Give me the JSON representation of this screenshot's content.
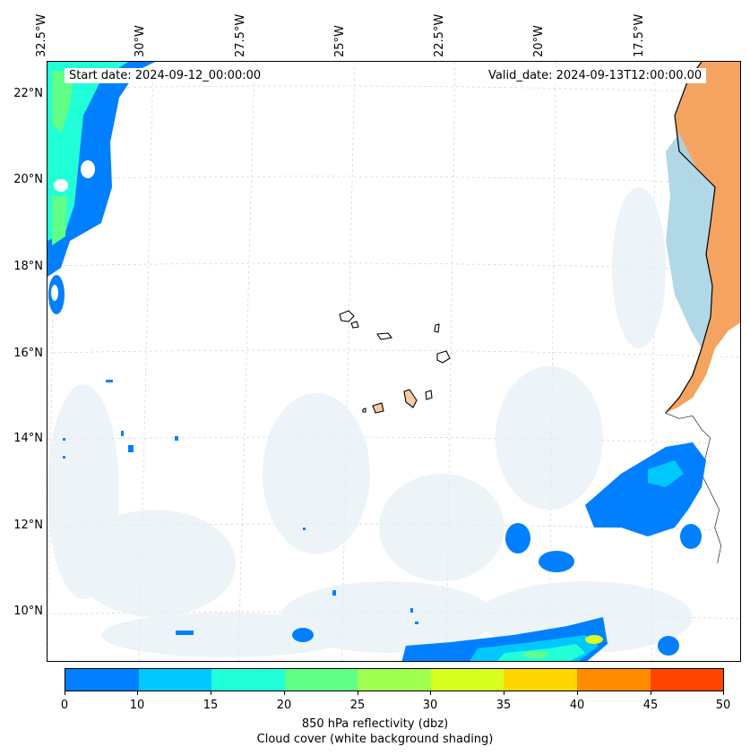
{
  "map": {
    "start_date": "Start date: 2024-09-12_00:00:00",
    "valid_date": "Valid_date: 2024-09-13T12:00:00.00",
    "lon_labels": [
      "32.5°W",
      "30°W",
      "27.5°W",
      "25°W",
      "22.5°W",
      "20°W",
      "17.5°W"
    ],
    "lat_labels": [
      "22°N",
      "20°N",
      "18°N",
      "16°N",
      "14°N",
      "12°N",
      "10°N"
    ]
  },
  "colorbar": {
    "ticks": [
      "0",
      "10",
      "15",
      "20",
      "25",
      "30",
      "35",
      "40",
      "45",
      "50"
    ],
    "colors": [
      "#0080ff",
      "#00c8ff",
      "#20ffd8",
      "#60ff88",
      "#a0ff50",
      "#d8ff20",
      "#ffd700",
      "#ff8c00",
      "#ff4500"
    ],
    "label_line1": "850 hPa reflectivity (dbz)",
    "label_line2": "Cloud cover (white background shading)"
  }
}
